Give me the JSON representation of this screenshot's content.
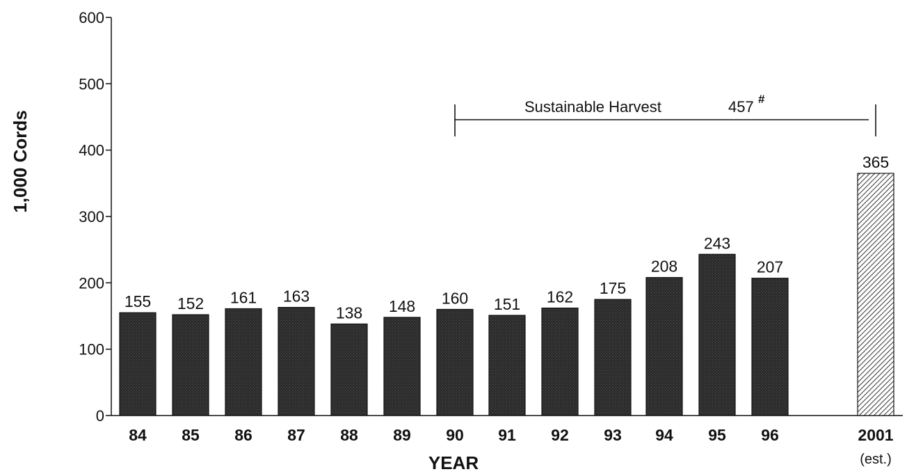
{
  "chart_data": {
    "type": "bar",
    "title": "",
    "xlabel": "YEAR",
    "ylabel": "1,000 Cords",
    "ylim": [
      0,
      600
    ],
    "yticks": [
      0,
      100,
      200,
      300,
      400,
      500,
      600
    ],
    "grid": false,
    "legend": "none",
    "categories": [
      "84",
      "85",
      "86",
      "87",
      "88",
      "89",
      "90",
      "91",
      "92",
      "93",
      "94",
      "95",
      "96",
      "2001"
    ],
    "category_sublabels": {
      "2001": "(est.)"
    },
    "values": [
      155,
      152,
      161,
      163,
      138,
      148,
      160,
      151,
      162,
      175,
      208,
      243,
      207,
      365
    ],
    "estimated": [
      false,
      false,
      false,
      false,
      false,
      false,
      false,
      false,
      false,
      false,
      false,
      false,
      false,
      true
    ],
    "colors": {
      "actual": "#2b2b2b",
      "estimate_fill": "#ffffff",
      "estimate_hatch": "#333333",
      "axis": "#111111"
    },
    "annotation": {
      "text": "Sustainable Harvest",
      "value": "457",
      "superscript": "#",
      "from_category": "90",
      "to_category": "2001"
    }
  }
}
